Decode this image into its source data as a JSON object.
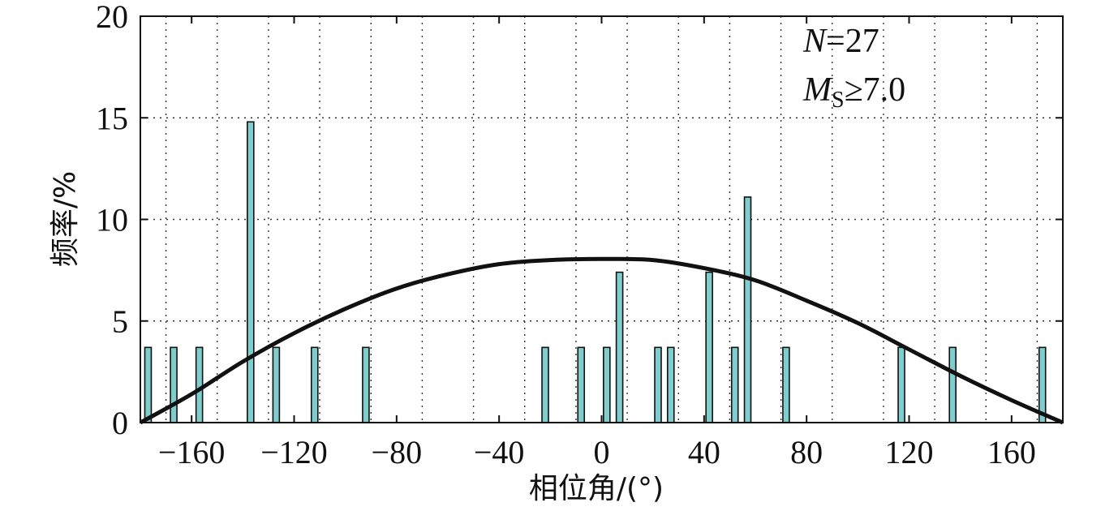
{
  "chart_data": {
    "type": "bar",
    "title": "",
    "xlabel": "相位角/(°)",
    "ylabel": "频率/%",
    "xlim": [
      -180,
      180
    ],
    "ylim": [
      0,
      20
    ],
    "xticks": [
      -160,
      -120,
      -80,
      -40,
      0,
      40,
      80,
      120,
      160
    ],
    "xtick_labels": [
      "−160",
      "−120",
      "−80",
      "−40",
      "0",
      "40",
      "80",
      "120",
      "160"
    ],
    "yticks": [
      0,
      5,
      10,
      15,
      20
    ],
    "grid": true,
    "bar_color": "#7fcdcc",
    "bar_edge_color": "#111111",
    "curve_color": "#111111",
    "annotations": {
      "n": {
        "label": "N",
        "value": "=27"
      },
      "ms": {
        "label": "M",
        "sub": "S",
        "value": "≥7.0"
      }
    },
    "series": [
      {
        "type": "bar",
        "x": [
          -177,
          -167,
          -157,
          -137,
          -127,
          -112,
          -92,
          -22,
          -8,
          2,
          7,
          22,
          27,
          42,
          52,
          57,
          72,
          117,
          137,
          172
        ],
        "values": [
          3.7,
          3.7,
          3.7,
          14.8,
          3.7,
          3.7,
          3.7,
          3.7,
          3.7,
          3.7,
          7.4,
          3.7,
          3.7,
          7.4,
          3.7,
          11.1,
          3.7,
          3.7,
          3.7,
          3.7
        ]
      },
      {
        "type": "line",
        "x": [
          -180,
          -160,
          -140,
          -120,
          -100,
          -80,
          -60,
          -40,
          -20,
          0,
          20,
          40,
          60,
          80,
          100,
          120,
          140,
          160,
          180
        ],
        "values": [
          0.0,
          1.4,
          3.0,
          4.4,
          5.6,
          6.6,
          7.3,
          7.8,
          8.0,
          8.05,
          8.0,
          7.6,
          7.0,
          6.0,
          4.9,
          3.6,
          2.3,
          1.1,
          0.0
        ]
      }
    ]
  }
}
